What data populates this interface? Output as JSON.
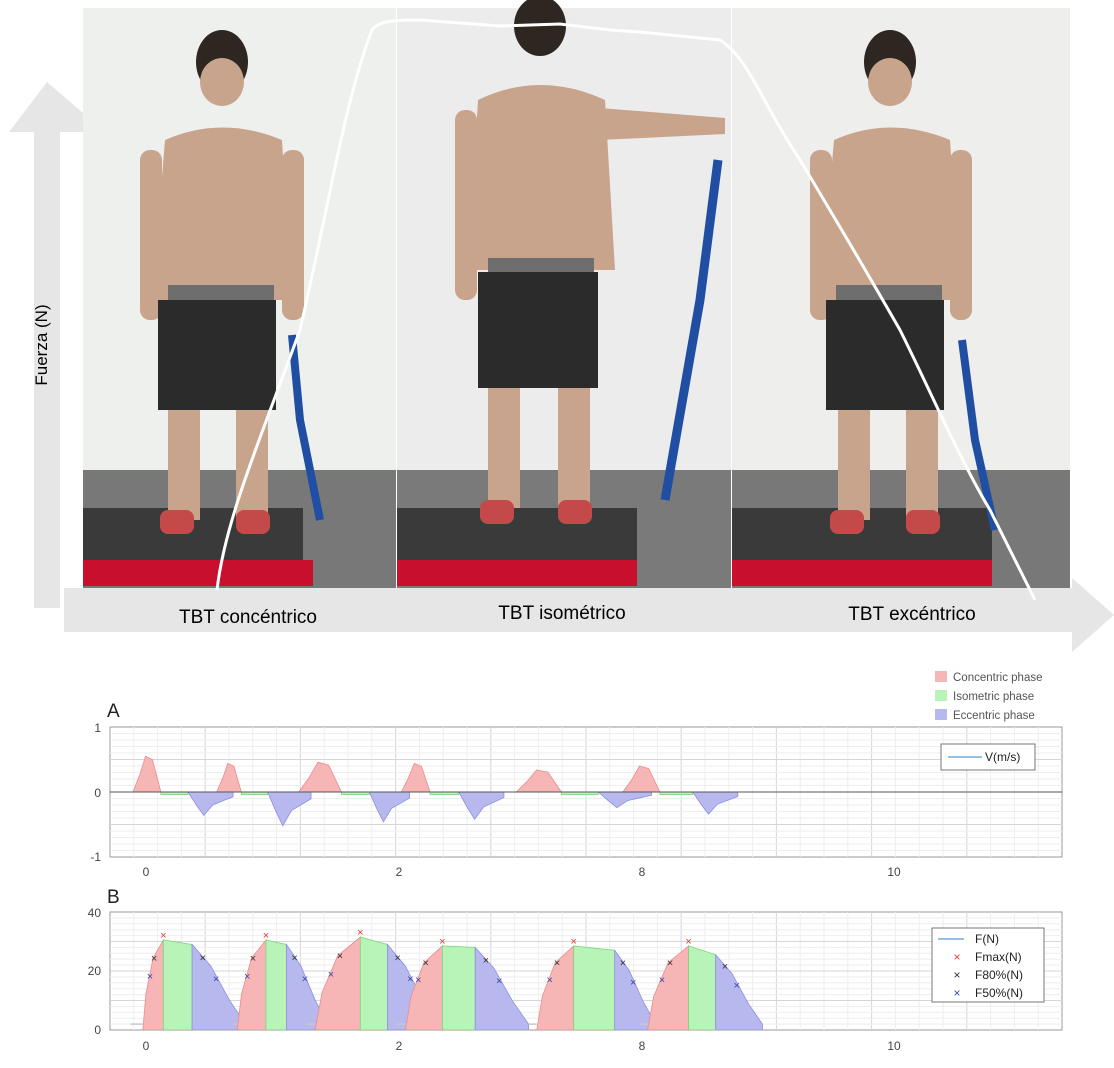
{
  "top_figure": {
    "ylabel": "Fuerza (N)",
    "phases": [
      "TBT concéntrico",
      "TBT isométrico",
      "TBT excéntrico"
    ]
  },
  "legend_phases": [
    {
      "label": "Concentric phase",
      "color": "#f7b6b6"
    },
    {
      "label": "Isometric phase",
      "color": "#b8f3b8"
    },
    {
      "label": "Eccentric phase",
      "color": "#b7b9ee"
    }
  ],
  "colors": {
    "concentric": "#f7b6b6",
    "isometric": "#b8f3b8",
    "eccentric": "#b7b9ee",
    "line": "#5b9bd5",
    "fmax": "#e53935",
    "f80": "#333333",
    "f50": "#3949ab",
    "arrow": "#e3e3e3"
  },
  "chart_data": [
    {
      "type": "area",
      "panel_label": "A",
      "x_ticks": [
        "0",
        "2",
        "8",
        "10"
      ],
      "y_ticks": [
        "1",
        "0",
        "-1"
      ],
      "ylim": [
        -1,
        1
      ],
      "xlim": [
        -0.2,
        11.4
      ],
      "legend": [
        "V(m/s)"
      ],
      "reps": [
        {
          "con": [
            0.08,
            0.42
          ],
          "con_peak": 0.55,
          "iso": [
            0.42,
            0.75
          ],
          "ecc": [
            0.75,
            1.3
          ],
          "ecc_peak": -0.36
        },
        {
          "con": [
            1.1,
            1.4
          ],
          "con_peak": 0.44,
          "iso": [
            1.4,
            1.72
          ],
          "ecc": [
            1.72,
            2.25
          ],
          "ecc_peak": -0.52
        },
        {
          "con": [
            2.1,
            2.62
          ],
          "con_peak": 0.46,
          "iso": [
            2.62,
            2.96
          ],
          "ecc": [
            2.96,
            3.45
          ],
          "ecc_peak": -0.46
        },
        {
          "con": [
            3.35,
            3.7
          ],
          "con_peak": 0.44,
          "iso": [
            3.7,
            4.05
          ],
          "ecc": [
            4.05,
            4.6
          ],
          "ecc_peak": -0.42
        },
        {
          "con": [
            4.75,
            5.3
          ],
          "con_peak": 0.34,
          "iso": [
            5.3,
            5.75
          ],
          "ecc": [
            5.75,
            6.4
          ],
          "ecc_peak": -0.24
        },
        {
          "con": [
            6.05,
            6.5
          ],
          "con_peak": 0.4,
          "iso": [
            6.5,
            6.9
          ],
          "ecc": [
            6.9,
            7.45
          ],
          "ecc_peak": -0.34
        }
      ]
    },
    {
      "type": "area",
      "panel_label": "B",
      "x_ticks": [
        "0",
        "2",
        "8",
        "10"
      ],
      "y_ticks": [
        "40",
        "20",
        "0"
      ],
      "ylim": [
        0,
        40
      ],
      "xlim": [
        -0.2,
        11.4
      ],
      "legend": [
        "F(N)",
        "Fmax(N)",
        "F80%(N)",
        "F50%(N)"
      ],
      "reps": [
        {
          "start": 0.05,
          "con": [
            0.2,
            0.45
          ],
          "iso": [
            0.45,
            0.8
          ],
          "ecc": [
            0.8,
            1.45
          ],
          "peak": 30.5,
          "plateau_end": 29
        },
        {
          "start": 1.3,
          "con": [
            1.35,
            1.7
          ],
          "iso": [
            1.7,
            1.95
          ],
          "ecc": [
            1.95,
            2.45
          ],
          "peak": 30.5,
          "plateau_end": 29
        },
        {
          "start": 2.2,
          "con": [
            2.3,
            2.85
          ],
          "iso": [
            2.85,
            3.18
          ],
          "ecc": [
            3.18,
            3.8
          ],
          "peak": 31.5,
          "plateau_end": 29
        },
        {
          "start": 3.3,
          "con": [
            3.4,
            3.85
          ],
          "iso": [
            3.85,
            4.25
          ],
          "ecc": [
            4.25,
            4.9
          ],
          "peak": 28.5,
          "plateau_end": 28
        },
        {
          "start": 4.9,
          "con": [
            5.0,
            5.45
          ],
          "iso": [
            5.45,
            5.95
          ],
          "ecc": [
            5.95,
            6.45
          ],
          "peak": 28.5,
          "plateau_end": 27
        },
        {
          "start": 6.25,
          "con": [
            6.35,
            6.85
          ],
          "iso": [
            6.85,
            7.18
          ],
          "ecc": [
            7.18,
            7.75
          ],
          "peak": 28.5,
          "plateau_end": 25.5
        }
      ]
    }
  ]
}
